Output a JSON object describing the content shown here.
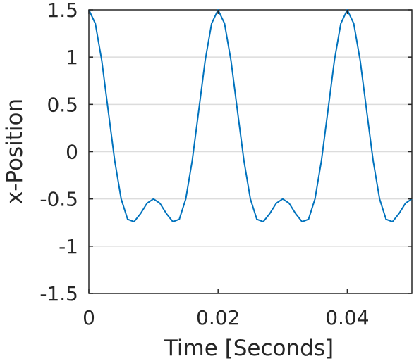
{
  "chart_data": {
    "type": "line",
    "title": "",
    "xlabel": "Time [Seconds]",
    "ylabel": "x-Position",
    "xlim": [
      0,
      0.05
    ],
    "ylim": [
      -1.5,
      1.5
    ],
    "xticks": [
      0,
      0.02,
      0.04
    ],
    "xtick_labels": [
      "0",
      "0.02",
      "0.04"
    ],
    "yticks": [
      -1.5,
      -1,
      -0.5,
      0,
      0.5,
      1,
      1.5
    ],
    "ytick_labels": [
      "-1.5",
      "-1",
      "-0.5",
      "0",
      "0.5",
      "1",
      "1.5"
    ],
    "grid": "horizontal",
    "legend": "none",
    "line_color": "#0072bd",
    "series": [
      {
        "x": [
          0,
          0.001,
          0.002,
          0.003,
          0.004,
          0.005,
          0.006,
          0.007,
          0.008,
          0.009,
          0.01,
          0.011,
          0.012,
          0.013,
          0.014,
          0.015,
          0.016,
          0.017,
          0.018,
          0.019,
          0.02,
          0.021,
          0.022,
          0.023,
          0.024,
          0.025,
          0.026,
          0.027,
          0.028,
          0.029,
          0.03,
          0.031,
          0.032,
          0.033,
          0.034,
          0.035,
          0.036,
          0.037,
          0.038,
          0.039,
          0.04,
          0.041,
          0.042,
          0.043,
          0.044,
          0.045,
          0.046,
          0.047,
          0.048,
          0.049,
          0.05
        ],
        "y": [
          1.5,
          1.355,
          0.963,
          0.432,
          -0.094,
          -0.5,
          -0.715,
          -0.741,
          -0.655,
          -0.546,
          -0.5,
          -0.546,
          -0.655,
          -0.741,
          -0.715,
          -0.5,
          -0.094,
          0.432,
          0.963,
          1.355,
          1.5,
          1.355,
          0.963,
          0.432,
          -0.094,
          -0.5,
          -0.715,
          -0.741,
          -0.655,
          -0.546,
          -0.5,
          -0.546,
          -0.655,
          -0.741,
          -0.715,
          -0.5,
          -0.094,
          0.432,
          0.963,
          1.355,
          1.5,
          1.355,
          0.963,
          0.432,
          -0.094,
          -0.5,
          -0.715,
          -0.741,
          -0.655,
          -0.546,
          -0.5
        ]
      }
    ]
  }
}
